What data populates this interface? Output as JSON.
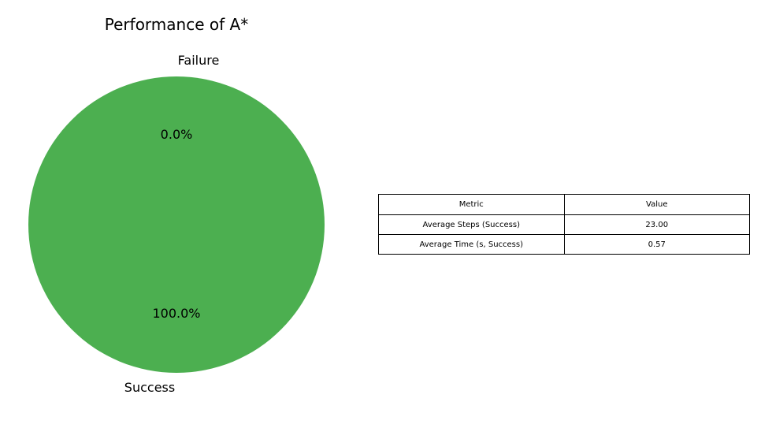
{
  "chart_data": [
    {
      "type": "pie",
      "title": "Performance of A*",
      "labels": [
        "Success",
        "Failure"
      ],
      "values": [
        100.0,
        0.0
      ],
      "percent_labels": [
        "100.0%",
        "0.0%"
      ],
      "colors": [
        "#4caf50",
        "#f44336"
      ]
    },
    {
      "type": "table",
      "columns": [
        "Metric",
        "Value"
      ],
      "rows": [
        [
          "Average Steps (Success)",
          "23.00"
        ],
        [
          "Average Time (s, Success)",
          "0.57"
        ]
      ]
    }
  ]
}
